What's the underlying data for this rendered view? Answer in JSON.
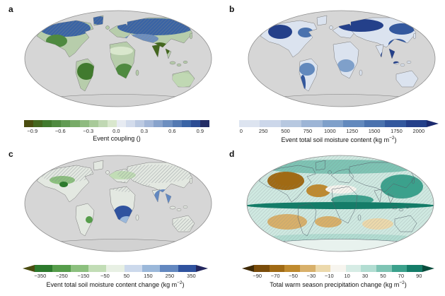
{
  "figure": {
    "background": "#ffffff"
  },
  "panels": {
    "a": {
      "letter": "a",
      "map": {
        "ocean": "#d6d6d6",
        "land_base": "#b7cdab",
        "outline": "#7a7a7a",
        "hatch": "#7f868c",
        "antarctica": "#d2d2d2"
      },
      "colorbar": {
        "left_arrow": null,
        "segments": [
          "#4b4d10",
          "#44671f",
          "#417a2e",
          "#4f8a40",
          "#629b54",
          "#78ab68",
          "#8fbb80",
          "#a8ca99",
          "#c0d8b3",
          "#d9e7cd",
          "#e7ebf2",
          "#d3dcec",
          "#bccae2",
          "#a3b7d8",
          "#88a3cc",
          "#6d8fc0",
          "#5379b2",
          "#3a64a5",
          "#2c4d94",
          "#232d66"
        ],
        "right_arrow": null,
        "ticks": [
          "−0.9",
          "−0.6",
          "−0.3",
          "0.0",
          "0.3",
          "0.6",
          "0.9"
        ],
        "label": {
          "pre": "Event coupling ()",
          "sup": "",
          "post": ""
        }
      }
    },
    "b": {
      "letter": "b",
      "map": {
        "ocean": "#d6d6d6",
        "land_base": "#dbe3ef",
        "outline": "#7a7a7a",
        "hatch": "#7f868c",
        "antarctica": "#d2d2d2"
      },
      "colorbar": {
        "left_arrow": null,
        "segments": [
          "#dde4f0",
          "#ccd7ea",
          "#b7c8e0",
          "#9db5d6",
          "#7fa0ca",
          "#6289bd",
          "#4a72ae",
          "#33589e",
          "#24408a"
        ],
        "right_arrow": "#1b2a6e",
        "ticks": [
          "0",
          "250",
          "500",
          "750",
          "1000",
          "1250",
          "1500",
          "1750",
          "2000"
        ],
        "label": {
          "pre": "Event total soil moisture content (kg m",
          "sup": "−2",
          "post": ")"
        }
      }
    },
    "c": {
      "letter": "c",
      "map": {
        "ocean": "#d6d6d6",
        "land_base": "#e3e8e1",
        "outline": "#7a7a7a",
        "hatch": "#7f868c",
        "antarctica": "#d2d2d2"
      },
      "colorbar": {
        "left_arrow": "#4a4c10",
        "segments": [
          "#2d7a2d",
          "#569d4b",
          "#8cc07e",
          "#c2ddb6",
          "#e8f0e4",
          "#ccd9ec",
          "#9bb8da",
          "#6388c0",
          "#30539f"
        ],
        "right_arrow": "#23265e",
        "ticks": [
          "−350",
          "−250",
          "−150",
          "−50",
          "50",
          "150",
          "250",
          "350"
        ],
        "label": {
          "pre": "Event total soil moisture content change (kg m",
          "sup": "−2",
          "post": ")"
        }
      }
    },
    "d": {
      "letter": "d",
      "map": {
        "ocean": "#cfe9e1",
        "land_base": "none",
        "outline": "#55606a",
        "hatch": "#7f868c",
        "antarctica": "#e8f2ee"
      },
      "colorbar": {
        "left_arrow": "#3f2a06",
        "segments": [
          "#7a4c0a",
          "#a06a14",
          "#bf8a2e",
          "#d8b06a",
          "#ecd9ac",
          "#f7f5ef",
          "#d6ece5",
          "#b2ddd2",
          "#7ec4b4",
          "#3ba18c",
          "#147c68"
        ],
        "right_arrow": "#0a4c3c",
        "ticks": [
          "−90",
          "−70",
          "−50",
          "−30",
          "−10",
          "10",
          "30",
          "50",
          "70",
          "90"
        ],
        "label": {
          "pre": "Total warm season precipitation change (kg m",
          "sup": "−2",
          "post": ")"
        }
      }
    }
  }
}
